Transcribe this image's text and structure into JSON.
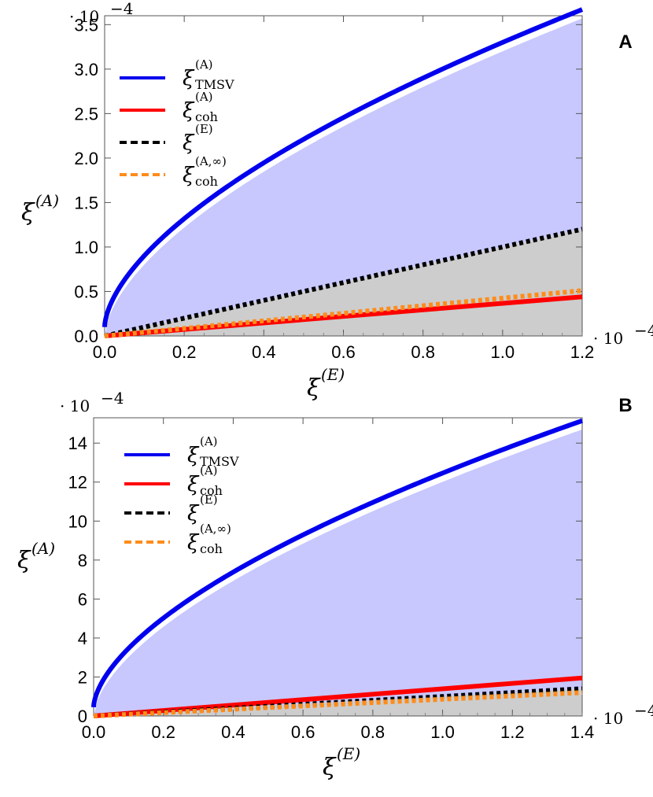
{
  "chart_data": [
    {
      "panel": "A",
      "type": "line",
      "xlabel": "ξ",
      "xlabel_sup": "(E)",
      "ylabel": "ξ",
      "ylabel_sup": "(A)",
      "x_multiplier": "· 10",
      "y_multiplier": "· 10",
      "multiplier_exp": "−4",
      "xlim": [
        0,
        1.2
      ],
      "ylim": [
        0,
        3.6
      ],
      "xticks": [
        "0.0",
        "0.2",
        "0.4",
        "0.6",
        "0.8",
        "1.0",
        "1.2"
      ],
      "yticks": [
        "0.0",
        "0.5",
        "1.0",
        "1.5",
        "2.0",
        "2.5",
        "3.0",
        "3.5"
      ],
      "shaded_regions": [
        {
          "name": "upper",
          "color": "#c8c8ff",
          "between": [
            "xi_A_TMSV",
            "xi_E"
          ]
        },
        {
          "name": "lower",
          "color": "#cdcdcd",
          "between": [
            "xi_E",
            "zero"
          ]
        }
      ],
      "series": [
        {
          "id": "xi_A_TMSV",
          "name": "ξ",
          "sup": "(A)",
          "sub": "TMSV",
          "color": "#0000ee",
          "style": "solid",
          "model": "power",
          "a": 3.57,
          "p": 0.6,
          "x_start": 0.0
        },
        {
          "id": "xi_A_coh",
          "name": "ξ",
          "sup": "(A)",
          "sub": "coh",
          "color": "#ff0000",
          "style": "solid",
          "model": "linear",
          "x": [
            0,
            1.2
          ],
          "y": [
            0,
            0.44
          ]
        },
        {
          "id": "xi_E",
          "name": "ξ",
          "sup": "(E)",
          "sub": "",
          "color": "#000000",
          "style": "dashed",
          "model": "linear",
          "x": [
            0,
            1.2
          ],
          "y": [
            0,
            1.2
          ]
        },
        {
          "id": "xi_A_coh_inf",
          "name": "ξ",
          "sup": "(A,∞)",
          "sub": "coh",
          "color": "#ff8c1a",
          "style": "dashed",
          "model": "linear",
          "x": [
            0,
            1.2
          ],
          "y": [
            0,
            0.51
          ]
        }
      ]
    },
    {
      "panel": "B",
      "type": "line",
      "xlabel": "ξ",
      "xlabel_sup": "(E)",
      "ylabel": "ξ",
      "ylabel_sup": "(A)",
      "x_multiplier": "· 10",
      "y_multiplier": "· 10",
      "multiplier_exp": "−4",
      "xlim": [
        0,
        1.4
      ],
      "ylim": [
        0,
        15.3
      ],
      "xticks": [
        "0.0",
        "0.2",
        "0.4",
        "0.6",
        "0.8",
        "1.0",
        "1.2",
        "1.4"
      ],
      "yticks": [
        "0",
        "2",
        "4",
        "6",
        "8",
        "10",
        "12",
        "14"
      ],
      "shaded_regions": [
        {
          "name": "upper",
          "color": "#c8c8ff",
          "between": [
            "xi_A_TMSV",
            "xi_E"
          ]
        },
        {
          "name": "lower",
          "color": "#cdcdcd",
          "between": [
            "xi_E",
            "zero"
          ]
        }
      ],
      "series": [
        {
          "id": "xi_A_TMSV",
          "name": "ξ",
          "sup": "(A)",
          "sub": "TMSV",
          "color": "#0000ee",
          "style": "solid",
          "model": "power",
          "a": 14.7,
          "p": 0.6,
          "x_start": 0.0
        },
        {
          "id": "xi_A_coh",
          "name": "ξ",
          "sup": "(A)",
          "sub": "coh",
          "color": "#ff0000",
          "style": "solid",
          "model": "linear",
          "x": [
            0,
            1.4
          ],
          "y": [
            0,
            1.95
          ]
        },
        {
          "id": "xi_E",
          "name": "ξ",
          "sup": "(E)",
          "sub": "",
          "color": "#000000",
          "style": "dashed",
          "model": "linear",
          "x": [
            0,
            1.4
          ],
          "y": [
            0,
            1.4
          ]
        },
        {
          "id": "xi_A_coh_inf",
          "name": "ξ",
          "sup": "(A,∞)",
          "sub": "coh",
          "color": "#ff8c1a",
          "style": "dashed",
          "model": "linear",
          "x": [
            0,
            1.4
          ],
          "y": [
            0,
            1.2
          ]
        }
      ]
    }
  ]
}
